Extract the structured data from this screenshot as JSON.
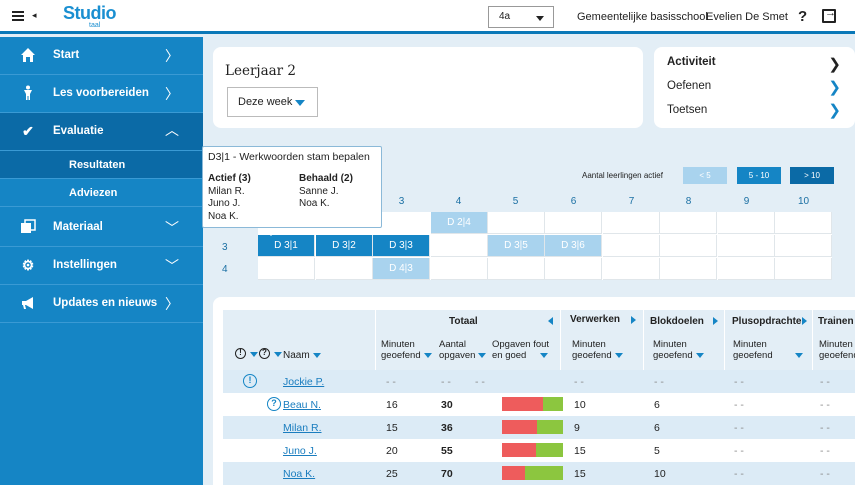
{
  "topbar": {
    "logo_word": "Studio",
    "logo_sub": "taal",
    "class_value": "4a",
    "school": "Gemeentelijke basisschool",
    "user": "Evelien De Smet",
    "help": "?"
  },
  "sidebar": {
    "start": "Start",
    "les": "Les voorbereiden",
    "evaluatie": "Evaluatie",
    "resultaten": "Resultaten",
    "adviezen": "Adviezen",
    "materiaal": "Materiaal",
    "instellingen": "Instellingen",
    "updates": "Updates en nieuws"
  },
  "leerjaar": {
    "title": "Leerjaar 2",
    "period": "Deze week"
  },
  "activity": {
    "activiteit": "Activiteit",
    "oefenen": "Oefenen",
    "toetsen": "Toetsen"
  },
  "legend": {
    "label": "Aantal leerlingen actief",
    "low": "< 5",
    "mid": "5 - 10",
    "high": "> 10"
  },
  "grid": {
    "columns": [
      "3",
      "4",
      "5",
      "6",
      "7",
      "8",
      "9",
      "10"
    ],
    "rows": [
      "3",
      "4"
    ],
    "cells": {
      "d24": "D 2|4",
      "d31": "D 3|1",
      "d32": "D 3|2",
      "d33": "D 3|3",
      "d35": "D 3|5",
      "d36": "D 3|6",
      "d43": "D 4|3"
    }
  },
  "popover": {
    "title": "D3|1 - Werkwoorden stam bepalen",
    "actief_label": "Actief (3)",
    "actief": [
      "Milan R.",
      "Juno J.",
      "Noa K."
    ],
    "behaald_label": "Behaald (2)",
    "behaald": [
      "Sanne J.",
      "Noa K."
    ]
  },
  "table": {
    "totaal": "Totaal",
    "verwerken": "Verwerken",
    "blokdoelen": "Blokdoelen",
    "plusopdrachten": "Plusopdrachte",
    "trainen": "Trainen",
    "naam": "Naam",
    "minuten1": "Minuten",
    "minuten2": "geoefend",
    "aantal1": "Aantal",
    "aantal2": "opgaven",
    "fout1": "Opgaven fout",
    "fout2": "en goed",
    "excl": "!",
    "quest": "?",
    "dash": "- -",
    "rows": [
      {
        "name": "Jockie P.",
        "min": "- -",
        "aantal": "- -",
        "verw": "- -",
        "blok": "- -",
        "plus": "- -",
        "train": "- -"
      },
      {
        "name": "Beau N.",
        "min": "16",
        "aantal": "30",
        "verw": "10",
        "blok": "6",
        "plus": "- -",
        "train": "- -",
        "fout": 0.68
      },
      {
        "name": "Milan R.",
        "min": "15",
        "aantal": "36",
        "verw": "9",
        "blok": "6",
        "plus": "- -",
        "train": "- -",
        "fout": 0.58
      },
      {
        "name": "Juno J.",
        "min": "20",
        "aantal": "55",
        "verw": "15",
        "blok": "5",
        "plus": "- -",
        "train": "- -",
        "fout": 0.55
      },
      {
        "name": "Noa K.",
        "min": "25",
        "aantal": "70",
        "verw": "15",
        "blok": "10",
        "plus": "- -",
        "train": "- -",
        "fout": 0.37
      }
    ]
  },
  "colors": {
    "primary": "#1585c5",
    "dark": "#0b6aa6",
    "light": "#a9d3ee",
    "red": "#ee5c5c",
    "green": "#8cc63f"
  }
}
